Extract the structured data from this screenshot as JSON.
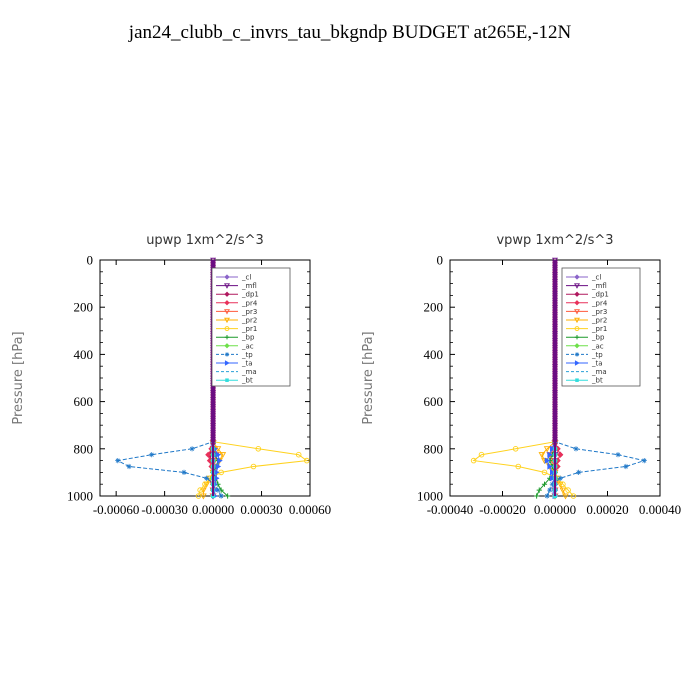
{
  "title": "jan24_clubb_c_invrs_tau_bkgndp  BUDGET at265E,-12N",
  "chart_data": [
    {
      "type": "line",
      "title": "upwp   1xm^2/s^3",
      "ylabel": "Pressure [hPa]",
      "xlabel": "",
      "xlim": [
        -0.0007,
        0.0006
      ],
      "ylim": [
        1000,
        0
      ],
      "xticks": [
        -0.0006,
        -0.0003,
        0.0,
        0.0003,
        0.0006
      ],
      "xtick_labels": [
        "-0.00060",
        "-0.00030",
        "0.00000",
        "0.00030",
        "0.00060"
      ],
      "yticks": [
        0,
        200,
        400,
        600,
        800,
        1000
      ],
      "ytick_labels": [
        "0",
        "200",
        "400",
        "600",
        "800",
        "1000"
      ],
      "legend_position": "top-right",
      "pressure": [
        775,
        800,
        825,
        850,
        875,
        900,
        925,
        950,
        975,
        1000
      ],
      "series": [
        {
          "name": "_cl",
          "color": "#8a63c9",
          "marker": "diamond",
          "values": [
            0,
            0,
            0,
            0,
            0,
            0,
            0,
            0,
            0,
            0
          ]
        },
        {
          "name": "_mfl",
          "color": "#6a0d83",
          "marker": "triangle-down",
          "values": [
            0,
            0,
            0,
            0,
            0,
            0,
            0,
            0,
            0,
            0
          ]
        },
        {
          "name": "_dp1",
          "color": "#b0185e",
          "marker": "diamond",
          "values": [
            0,
            -1e-05,
            -2e-05,
            -1e-05,
            0,
            0,
            0,
            0,
            0,
            0
          ]
        },
        {
          "name": "_pr4",
          "color": "#e8305a",
          "marker": "diamond",
          "values": [
            0,
            -1e-05,
            -3e-05,
            -2e-05,
            -1e-05,
            0,
            0,
            0,
            0,
            0
          ]
        },
        {
          "name": "_pr3",
          "color": "#ff5a3c",
          "marker": "triangle-down",
          "values": [
            0,
            1e-05,
            2e-05,
            1e-05,
            0,
            0,
            0,
            0,
            0,
            0
          ]
        },
        {
          "name": "_pr2",
          "color": "#ffb000",
          "marker": "triangle-down",
          "values": [
            0,
            3e-05,
            6e-05,
            4e-05,
            2e-05,
            0,
            -2e-05,
            -4e-05,
            -6e-05,
            -6e-05
          ]
        },
        {
          "name": "_pr1",
          "color": "#ffd21e",
          "marker": "circle",
          "values": [
            0,
            0.00028,
            0.00053,
            0.00058,
            0.00025,
            5e-05,
            -2e-05,
            -5e-05,
            -8e-05,
            -9e-05
          ]
        },
        {
          "name": "_bp",
          "color": "#1a9a2a",
          "marker": "cross",
          "values": [
            0,
            0,
            1e-05,
            3e-05,
            2e-05,
            0,
            2e-05,
            3e-05,
            5e-05,
            9e-05
          ]
        },
        {
          "name": "_ac",
          "color": "#6ee04a",
          "marker": "diamond",
          "values": [
            0,
            0,
            0,
            0,
            0,
            0,
            0,
            0,
            0,
            0
          ]
        },
        {
          "name": "_tp",
          "color": "#1f78c8",
          "marker": "star",
          "values": [
            0,
            -0.00013,
            -0.00038,
            -0.00059,
            -0.00052,
            -0.00018,
            -4e-05,
            1e-05,
            3e-05,
            5e-05
          ]
        },
        {
          "name": "_ta",
          "color": "#3366ff",
          "marker": "triangle-right",
          "values": [
            0,
            1e-05,
            3e-05,
            4e-05,
            3e-05,
            2e-05,
            2e-05,
            1e-05,
            1e-05,
            1e-05
          ]
        },
        {
          "name": "_ma",
          "color": "#2aa0d8",
          "marker": "none",
          "values": [
            0,
            0,
            0,
            0,
            0,
            0,
            0,
            0,
            0,
            0
          ]
        },
        {
          "name": "_bt",
          "color": "#33dddd",
          "marker": "square",
          "values": [
            0,
            0,
            0,
            0,
            0,
            0,
            0,
            0,
            0,
            0
          ]
        }
      ]
    },
    {
      "type": "line",
      "title": "vpwp   1xm^2/s^3",
      "ylabel": "Pressure [hPa]",
      "xlabel": "",
      "xlim": [
        -0.0004,
        0.0004
      ],
      "ylim": [
        1000,
        0
      ],
      "xticks": [
        -0.0004,
        -0.0002,
        0.0,
        0.0002,
        0.0004
      ],
      "xtick_labels": [
        "-0.00040",
        "-0.00020",
        "0.00000",
        "0.00020",
        "0.00040"
      ],
      "yticks": [
        0,
        200,
        400,
        600,
        800,
        1000
      ],
      "ytick_labels": [
        "0",
        "200",
        "400",
        "600",
        "800",
        "1000"
      ],
      "legend_position": "top-right",
      "pressure": [
        775,
        800,
        825,
        850,
        875,
        900,
        925,
        950,
        975,
        1000
      ],
      "series": [
        {
          "name": "_cl",
          "color": "#8a63c9",
          "marker": "diamond",
          "values": [
            0,
            0,
            0,
            0,
            0,
            0,
            0,
            0,
            0,
            0
          ]
        },
        {
          "name": "_mfl",
          "color": "#6a0d83",
          "marker": "triangle-down",
          "values": [
            0,
            0,
            0,
            0,
            0,
            0,
            0,
            0,
            0,
            0
          ]
        },
        {
          "name": "_dp1",
          "color": "#b0185e",
          "marker": "diamond",
          "values": [
            0,
            1e-05,
            2e-05,
            1e-05,
            0,
            0,
            0,
            0,
            0,
            0
          ]
        },
        {
          "name": "_pr4",
          "color": "#e8305a",
          "marker": "diamond",
          "values": [
            0,
            1e-05,
            2e-05,
            1e-05,
            1e-05,
            0,
            0,
            0,
            0,
            0
          ]
        },
        {
          "name": "_pr3",
          "color": "#ff5a3c",
          "marker": "triangle-down",
          "values": [
            0,
            -1e-05,
            -2e-05,
            -1e-05,
            0,
            0,
            0,
            0,
            0,
            0
          ]
        },
        {
          "name": "_pr2",
          "color": "#ffb000",
          "marker": "triangle-down",
          "values": [
            0,
            -3e-05,
            -5e-05,
            -4e-05,
            -2e-05,
            0,
            1e-05,
            2e-05,
            3e-05,
            4e-05
          ]
        },
        {
          "name": "_pr1",
          "color": "#ffd21e",
          "marker": "circle",
          "values": [
            0,
            -0.00015,
            -0.00028,
            -0.00031,
            -0.00014,
            -4e-05,
            1e-05,
            3e-05,
            5e-05,
            7e-05
          ]
        },
        {
          "name": "_bp",
          "color": "#1a9a2a",
          "marker": "cross",
          "values": [
            0,
            0,
            -1e-05,
            -2e-05,
            -1e-05,
            0,
            -2e-05,
            -4e-05,
            -6e-05,
            -7e-05
          ]
        },
        {
          "name": "_ac",
          "color": "#6ee04a",
          "marker": "diamond",
          "values": [
            0,
            0,
            0,
            0,
            0,
            0,
            0,
            0,
            0,
            0
          ]
        },
        {
          "name": "_tp",
          "color": "#1f78c8",
          "marker": "star",
          "values": [
            0,
            8e-05,
            0.00024,
            0.00034,
            0.00027,
            9e-05,
            2e-05,
            -1e-05,
            -2e-05,
            -3e-05
          ]
        },
        {
          "name": "_ta",
          "color": "#3366ff",
          "marker": "triangle-right",
          "values": [
            0,
            -1e-05,
            -2e-05,
            -3e-05,
            -2e-05,
            -1e-05,
            -1e-05,
            0,
            0,
            0
          ]
        },
        {
          "name": "_ma",
          "color": "#2aa0d8",
          "marker": "none",
          "values": [
            0,
            0,
            0,
            0,
            0,
            0,
            0,
            0,
            0,
            0
          ]
        },
        {
          "name": "_bt",
          "color": "#33dddd",
          "marker": "square",
          "values": [
            0,
            0,
            0,
            0,
            0,
            0,
            0,
            0,
            0,
            0
          ]
        }
      ]
    }
  ]
}
